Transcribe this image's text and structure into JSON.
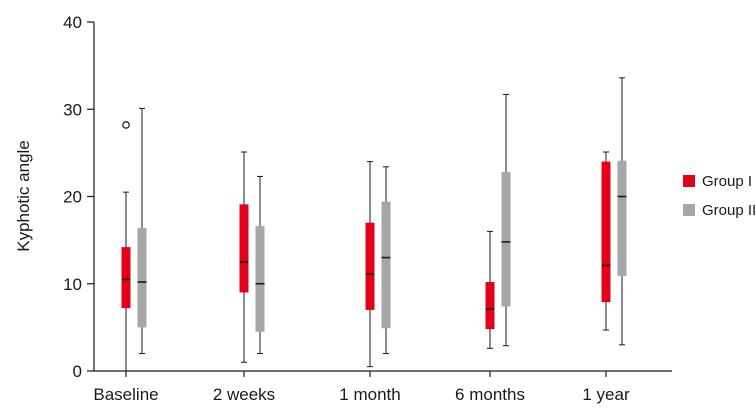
{
  "chart_data": {
    "type": "box",
    "ylabel": "Kyphotic angle",
    "xlabel": "",
    "ylim": [
      0,
      40
    ],
    "yticks": [
      0,
      10,
      20,
      30,
      40
    ],
    "categories": [
      "Baseline",
      "2 weeks",
      "1 month",
      "6 months",
      "1 year"
    ],
    "legend_position": "right",
    "series": [
      {
        "name": "Group I",
        "color": "#e3001b",
        "boxes": [
          {
            "min": 0,
            "q1": 7.2,
            "median": 10.5,
            "q3": 14.2,
            "max": 20.5,
            "outliers": [
              28.2
            ]
          },
          {
            "min": 1.0,
            "q1": 9.0,
            "median": 12.5,
            "q3": 19.1,
            "max": 25.1,
            "outliers": []
          },
          {
            "min": 0.5,
            "q1": 7.0,
            "median": 11.1,
            "q3": 17.0,
            "max": 24.0,
            "outliers": []
          },
          {
            "min": 2.6,
            "q1": 4.8,
            "median": 7.1,
            "q3": 10.2,
            "max": 16.0,
            "outliers": []
          },
          {
            "min": 4.7,
            "q1": 7.9,
            "median": 12.1,
            "q3": 24.0,
            "max": 25.1,
            "outliers": []
          }
        ]
      },
      {
        "name": "Group II",
        "color": "#a6a6a6",
        "boxes": [
          {
            "min": 2.0,
            "q1": 5.0,
            "median": 10.2,
            "q3": 16.4,
            "max": 30.1,
            "outliers": []
          },
          {
            "min": 2.0,
            "q1": 4.5,
            "median": 10.0,
            "q3": 16.6,
            "max": 22.3,
            "outliers": []
          },
          {
            "min": 2.0,
            "q1": 4.9,
            "median": 13.0,
            "q3": 19.4,
            "max": 23.4,
            "outliers": []
          },
          {
            "min": 2.9,
            "q1": 7.4,
            "median": 14.8,
            "q3": 22.8,
            "max": 31.7,
            "outliers": []
          },
          {
            "min": 3.0,
            "q1": 10.9,
            "median": 20.0,
            "q3": 24.1,
            "max": 33.6,
            "outliers": []
          }
        ]
      }
    ]
  }
}
